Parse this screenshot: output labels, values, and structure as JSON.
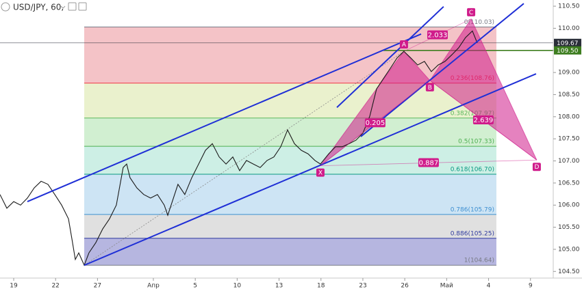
{
  "chart_data": {
    "type": "line",
    "title": "USD/JPY, 60,",
    "xlim": [
      -0.98,
      38.63
    ],
    "ylim": [
      104.35,
      110.64
    ],
    "xticks": [
      {
        "value": 0,
        "label": "19"
      },
      {
        "value": 3,
        "label": "22"
      },
      {
        "value": 6,
        "label": "27"
      },
      {
        "value": 10,
        "label": "Апр"
      },
      {
        "value": 13,
        "label": "5"
      },
      {
        "value": 16,
        "label": "10"
      },
      {
        "value": 19,
        "label": "13"
      },
      {
        "value": 22,
        "label": "18"
      },
      {
        "value": 25,
        "label": "23"
      },
      {
        "value": 28,
        "label": "26"
      },
      {
        "value": 31,
        "label": "Май"
      },
      {
        "value": 34,
        "label": "4"
      },
      {
        "value": 37,
        "label": "9"
      }
    ],
    "yticks": [
      {
        "value": 104.5,
        "label": "104.50"
      },
      {
        "value": 105,
        "label": "105.00"
      },
      {
        "value": 105.5,
        "label": "105.50"
      },
      {
        "value": 106,
        "label": "106.00"
      },
      {
        "value": 106.5,
        "label": "106.50"
      },
      {
        "value": 107,
        "label": "107.00"
      },
      {
        "value": 107.5,
        "label": "107.50"
      },
      {
        "value": 108,
        "label": "108.00"
      },
      {
        "value": 108.5,
        "label": "108.50"
      },
      {
        "value": 109,
        "label": "109.00"
      },
      {
        "value": 109.5,
        "label": "109.50"
      },
      {
        "value": 110,
        "label": "110.00"
      },
      {
        "value": 110.5,
        "label": "110.50"
      }
    ],
    "series": [
      {
        "name": "USD/JPY",
        "color": "#1a1a1a",
        "x": [
          -0.98,
          -0.49,
          0,
          0.49,
          0.98,
          1.47,
          1.96,
          2.45,
          2.94,
          3.43,
          3.92,
          4.17,
          4.41,
          4.66,
          5.05,
          5.39,
          5.88,
          6.37,
          6.86,
          7.35,
          7.84,
          8.09,
          8.33,
          8.82,
          9.31,
          9.8,
          10.29,
          10.78,
          11.03,
          11.27,
          11.76,
          12.25,
          12.75,
          13.24,
          13.73,
          14.22,
          14.71,
          15.2,
          15.69,
          16.18,
          16.67,
          17.16,
          17.65,
          18.14,
          18.63,
          19.12,
          19.61,
          20.1,
          20.59,
          21.08,
          21.57,
          21.96,
          22.55,
          23.04,
          23.53,
          24.02,
          24.51,
          25,
          25.49,
          25.98,
          26.47,
          26.96,
          27.45,
          27.94,
          28.43,
          28.92,
          29.41,
          29.9,
          30.39,
          30.88,
          31.37,
          31.86,
          32.35,
          32.84,
          33.19
        ],
        "values": [
          106.24,
          105.93,
          106.08,
          106.0,
          106.16,
          106.39,
          106.54,
          106.47,
          106.24,
          106.0,
          105.69,
          105.23,
          104.77,
          104.92,
          104.64,
          104.92,
          105.15,
          105.46,
          105.69,
          106.0,
          106.85,
          106.93,
          106.62,
          106.39,
          106.24,
          106.16,
          106.24,
          106.0,
          105.77,
          106.0,
          106.47,
          106.24,
          106.62,
          106.93,
          107.24,
          107.39,
          107.09,
          106.93,
          107.09,
          106.78,
          107.01,
          106.93,
          106.85,
          107.01,
          107.09,
          107.32,
          107.7,
          107.39,
          107.24,
          107.16,
          107.01,
          106.93,
          107.16,
          107.32,
          107.32,
          107.39,
          107.47,
          107.63,
          108.01,
          108.63,
          108.86,
          109.09,
          109.33,
          109.48,
          109.33,
          109.17,
          109.25,
          109.02,
          109.17,
          109.25,
          109.4,
          109.56,
          109.79,
          109.94,
          109.67
        ]
      }
    ],
    "price_labels": [
      {
        "value": 109.67,
        "label": "109.67",
        "color": "#2a2e39",
        "line": true
      },
      {
        "value": 109.5,
        "label": "109.50",
        "color": "#3d7d1f",
        "from_x": 26.47
      }
    ],
    "fib": {
      "x_range": [
        5.05,
        34.56
      ],
      "levels": [
        {
          "label": "0(110.03)",
          "value": 110.03,
          "color": "#787b86",
          "fill": "#f2b8bd"
        },
        {
          "label": "0.236(108.76)",
          "value": 108.76,
          "color": "#f23645",
          "fill": "#e6efc4"
        },
        {
          "label": "0.382(107.97)",
          "value": 107.97,
          "color": "#5bb85d",
          "fill": "#c9ecc9"
        },
        {
          "label": "0.5(107.33)",
          "value": 107.33,
          "color": "#4caf50",
          "fill": "#c4ece0"
        },
        {
          "label": "0.618(106.70)",
          "value": 106.7,
          "color": "#089981",
          "fill": "#c4dff2"
        },
        {
          "label": "0.786(105.79)",
          "value": 105.79,
          "color": "#3d8fd1",
          "fill": "#dadada"
        },
        {
          "label": "0.886(105.25)",
          "value": 105.25,
          "color": "#2f3a9e",
          "fill": "#a9a9da"
        },
        {
          "label": "1(104.64)",
          "value": 104.64,
          "color": "#787b86"
        }
      ]
    },
    "trend_lines": [
      {
        "x": [
          0.98,
          29.17
        ],
        "y": [
          106.08,
          109.87
        ],
        "color": "#1f2fd6"
      },
      {
        "x": [
          5.05,
          37.4
        ],
        "y": [
          104.64,
          108.97
        ],
        "color": "#1f2fd6"
      },
      {
        "x": [
          23.14,
          30.78
        ],
        "y": [
          108.21,
          110.49
        ],
        "color": "#1f2fd6"
      },
      {
        "x": [
          24.85,
          36.52
        ],
        "y": [
          107.55,
          110.56
        ],
        "color": "#1f2fd6"
      }
    ],
    "pattern": {
      "color": "#d01c8b",
      "points": [
        {
          "label": "X",
          "x": 21.96,
          "y": 106.89
        },
        {
          "label": "A",
          "x": 27.94,
          "y": 109.48
        },
        {
          "label": "B",
          "x": 29.8,
          "y": 108.82
        },
        {
          "label": "C",
          "x": 32.75,
          "y": 110.21
        },
        {
          "label": "D",
          "x": 37.45,
          "y": 107.02
        }
      ],
      "ratios": [
        {
          "text": "0.205",
          "between": [
            "X",
            "B"
          ]
        },
        {
          "text": "2.033",
          "between": [
            "A",
            "C"
          ]
        },
        {
          "text": "2.639",
          "between": [
            "B",
            "D"
          ]
        },
        {
          "text": "0.887",
          "between": [
            "X",
            "D"
          ]
        }
      ]
    }
  }
}
